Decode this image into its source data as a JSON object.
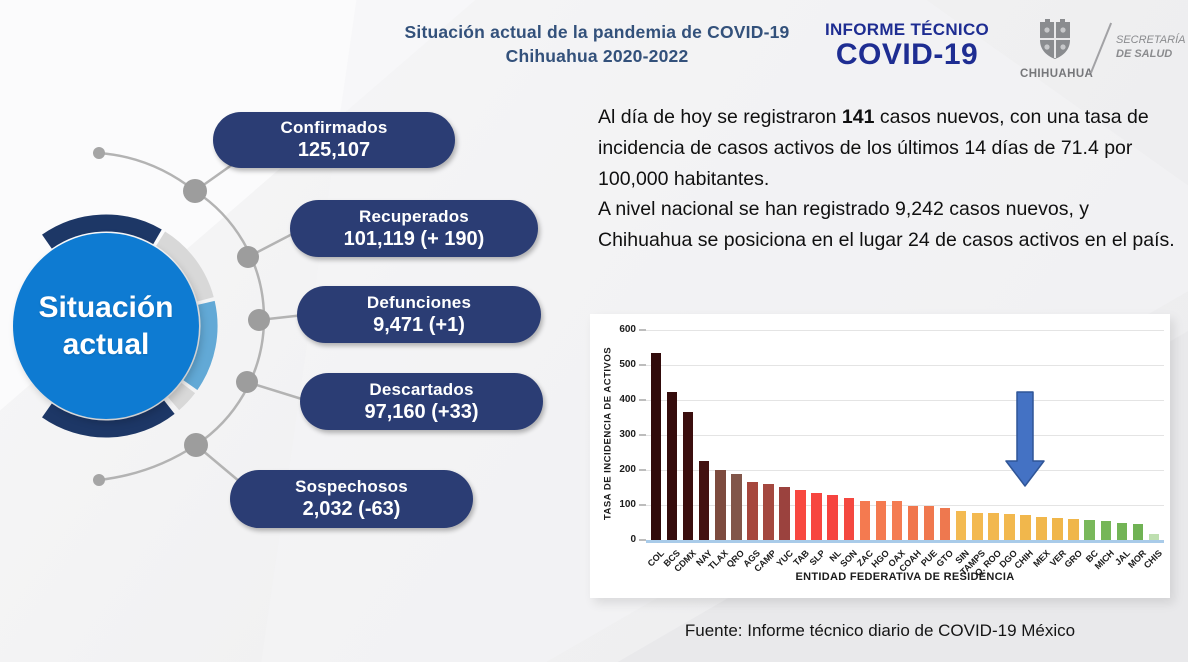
{
  "header": {
    "title_line1": "Situación actual de la pandemia de COVID-19",
    "title_line2": "Chihuahua 2020-2022",
    "brand_line1": "INFORME TÉCNICO",
    "brand_line2": "COVID-19",
    "gov_logo": {
      "state_name": "CHIHUAHUA",
      "secretaria_line1": "SECRETARÍA",
      "secretaria_line2": "DE SALUD"
    }
  },
  "infographic": {
    "hub_line1": "Situación",
    "hub_line2": "actual",
    "pills": [
      {
        "label": "Confirmados",
        "value": "125,107"
      },
      {
        "label": "Recuperados",
        "value": "101,119 (+ 190)"
      },
      {
        "label": "Defunciones",
        "value": "9,471 (+1)"
      },
      {
        "label": "Descartados",
        "value": "97,160 (+33)"
      },
      {
        "label": "Sospechosos",
        "value": "2,032 (-63)"
      }
    ]
  },
  "summary": {
    "p1_pre": "Al día de hoy se registraron ",
    "p1_bold": "141",
    "p1_post": " casos nuevos, con una tasa de incidencia de casos activos de los últimos 14 días de 71.4 por 100,000 habitantes.",
    "p2": "A nivel nacional se han registrado 9,242 casos nuevos, y Chihuahua se posiciona en el lugar 24 de casos activos en el país."
  },
  "chart_data": {
    "type": "bar",
    "title": "",
    "xlabel": "ENTIDAD FEDERATIVA DE RESIDENCIA",
    "ylabel": "TASA DE INCIDENCIA DE ACTIVOS",
    "ylim": [
      0,
      600
    ],
    "ytick_step": 100,
    "grid": true,
    "legend": "none",
    "categories": [
      "COL",
      "BCS",
      "CDMX",
      "NAY",
      "TLAX",
      "QRO",
      "AGS",
      "CAMP",
      "YUC",
      "TAB",
      "SLP",
      "NL",
      "SON",
      "ZAC",
      "HGO",
      "OAX",
      "COAH",
      "PUE",
      "GTO",
      "SIN",
      "TAMPS",
      "Q. ROO",
      "DGO",
      "CHIH",
      "MEX",
      "VER",
      "GRO",
      "BC",
      "MICH",
      "JAL",
      "MOR",
      "CHIS"
    ],
    "values": [
      535,
      424,
      367,
      226,
      199,
      189,
      166,
      161,
      152,
      143,
      135,
      128,
      119,
      111,
      111,
      111,
      98,
      98,
      92,
      84,
      78,
      76,
      73,
      71,
      67,
      64,
      61,
      57,
      54,
      49,
      45,
      17
    ],
    "bar_colors": [
      "#310b0b",
      "#350c0c",
      "#3b0e0e",
      "#441211",
      "#7d4b3e",
      "#82564a",
      "#a6463d",
      "#a4483f",
      "#9b423e",
      "#f84840",
      "#f74640",
      "#f64440",
      "#f44840",
      "#f47a50",
      "#f47a50",
      "#f47c52",
      "#f0764c",
      "#f0784e",
      "#ee784f",
      "#f3ba52",
      "#f3b950",
      "#f2b84e",
      "#f2b84e",
      "#f1b74c",
      "#f1b74c",
      "#f0b64a",
      "#f0b64a",
      "#79b85a",
      "#76b658",
      "#73b456",
      "#70b254",
      "#bedfb0"
    ],
    "highlight": {
      "category": "CHIH",
      "marker": "blue-down-arrow"
    }
  },
  "footer": {
    "source": "Fuente: Informe técnico diario de COVID-19 México"
  },
  "colors": {
    "title_navy": "#33517b",
    "brand_blue": "#1e2d92",
    "pill_navy": "#2b3d74",
    "hub_blue": "#0e7bd2",
    "ring_navy": "#1d3766",
    "ring_gray": "#d8d8d8",
    "ring_lightblue": "#62a9d6",
    "network_gray": "#b3b3b3",
    "arrow_fill": "#4472c4",
    "arrow_stroke": "#2f5597",
    "baseline_blue": "#a9cbe9"
  }
}
